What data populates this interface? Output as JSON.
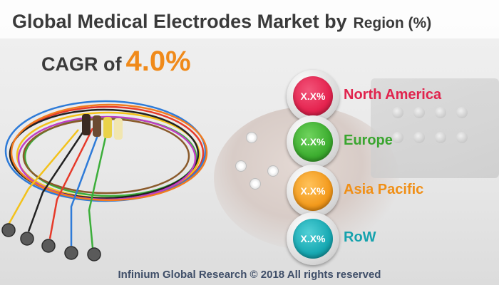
{
  "title": {
    "main": "Global Medical Electrodes Market by",
    "sub": "Region (%)"
  },
  "cagr": {
    "label": "CAGR of",
    "value": "4.0%"
  },
  "regions": [
    {
      "value": "X.X%",
      "name": "North America",
      "color": "#e5234f",
      "label_color": "#e0234d"
    },
    {
      "value": "X.X%",
      "name": "Europe",
      "color": "#3cad2f",
      "label_color": "#3aa52f"
    },
    {
      "value": "X.X%",
      "name": "Asia Pacific",
      "color": "#f39a1c",
      "label_color": "#f08f16"
    },
    {
      "value": "X.X%",
      "name": "RoW",
      "color": "#17a9b3",
      "label_color": "#15a2ad"
    }
  ],
  "footer": "Infinium Global Research © 2018 All rights reserved",
  "icons": [
    "electrode-lead-wires-illustration",
    "badge-circle"
  ]
}
